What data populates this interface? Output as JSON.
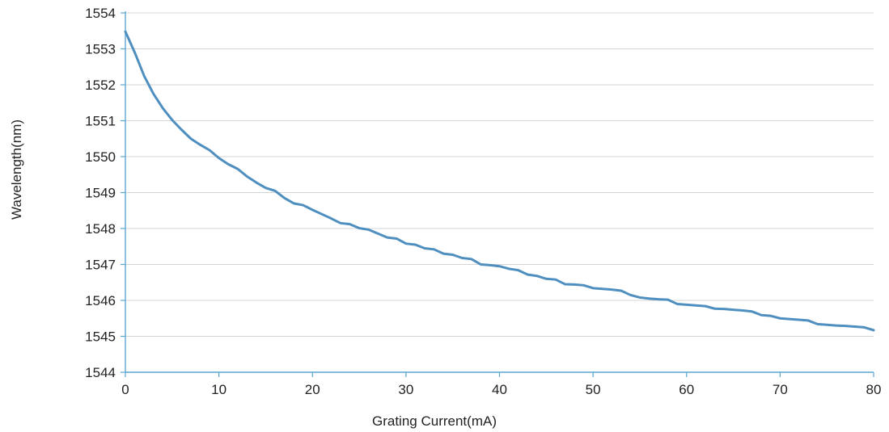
{
  "chart_data": {
    "type": "line",
    "title": "",
    "xlabel": "Grating Current(mA)",
    "ylabel": "Wavelength(nm)",
    "xlim": [
      0,
      80
    ],
    "ylim": [
      1544,
      1554
    ],
    "x_ticks": [
      0,
      10,
      20,
      30,
      40,
      50,
      60,
      70,
      80
    ],
    "y_ticks": [
      1544,
      1545,
      1546,
      1547,
      1548,
      1549,
      1550,
      1551,
      1552,
      1553,
      1554
    ],
    "grid": {
      "horizontal": true,
      "vertical": false
    },
    "legend": "none",
    "colors": {
      "line": "#4f8fc0",
      "axis": "#5aa6cf",
      "grid": "#d4d4d4"
    },
    "series": [
      {
        "x": [
          0,
          1,
          2,
          3,
          4,
          5,
          6,
          7,
          8,
          9,
          10,
          11,
          12,
          13,
          14,
          15,
          16,
          17,
          18,
          19,
          20,
          21,
          22,
          23,
          24,
          25,
          26,
          27,
          28,
          29,
          30,
          31,
          32,
          33,
          34,
          35,
          36,
          37,
          38,
          39,
          40,
          41,
          42,
          43,
          44,
          45,
          46,
          47,
          48,
          49,
          50,
          51,
          52,
          53,
          54,
          55,
          56,
          57,
          58,
          59,
          60,
          61,
          62,
          63,
          64,
          65,
          66,
          67,
          68,
          69,
          70,
          71,
          72,
          73,
          74,
          75,
          76,
          77,
          78,
          79,
          80
        ],
        "y": [
          1553.48,
          1552.9,
          1552.25,
          1551.75,
          1551.35,
          1551.02,
          1550.75,
          1550.5,
          1550.33,
          1550.18,
          1549.96,
          1549.79,
          1549.66,
          1549.45,
          1549.28,
          1549.13,
          1549.05,
          1548.85,
          1548.7,
          1548.65,
          1548.52,
          1548.4,
          1548.28,
          1548.15,
          1548.12,
          1548.01,
          1547.97,
          1547.86,
          1547.75,
          1547.72,
          1547.58,
          1547.55,
          1547.45,
          1547.42,
          1547.3,
          1547.27,
          1547.18,
          1547.15,
          1547.0,
          1546.98,
          1546.95,
          1546.88,
          1546.84,
          1546.72,
          1546.68,
          1546.6,
          1546.58,
          1546.45,
          1546.44,
          1546.42,
          1546.34,
          1546.32,
          1546.3,
          1546.27,
          1546.15,
          1546.08,
          1546.05,
          1546.03,
          1546.02,
          1545.9,
          1545.88,
          1545.86,
          1545.84,
          1545.77,
          1545.76,
          1545.74,
          1545.72,
          1545.69,
          1545.59,
          1545.57,
          1545.5,
          1545.48,
          1545.46,
          1545.44,
          1545.34,
          1545.32,
          1545.3,
          1545.29,
          1545.27,
          1545.25,
          1545.17
        ]
      }
    ]
  }
}
